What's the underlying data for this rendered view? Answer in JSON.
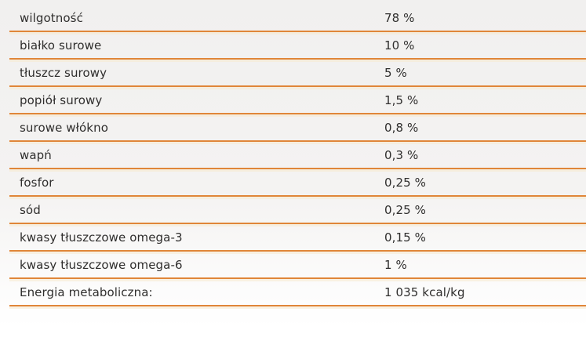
{
  "colors": {
    "separator": "#e08639",
    "text": "#2f2e2d",
    "background_top": "#f1f0ef",
    "background_bottom": "#ffffff"
  },
  "table": {
    "rows": [
      {
        "label": "wilgotność",
        "value": "78 %"
      },
      {
        "label": "białko surowe",
        "value": "10 %"
      },
      {
        "label": "tłuszcz surowy",
        "value": "5 %"
      },
      {
        "label": "popiół surowy",
        "value": "1,5 %"
      },
      {
        "label": "surowe włókno",
        "value": "0,8 %"
      },
      {
        "label": "wapń",
        "value": "0,3 %"
      },
      {
        "label": "fosfor",
        "value": "0,25 %"
      },
      {
        "label": "sód",
        "value": "0,25 %"
      },
      {
        "label": "kwasy tłuszczowe omega-3",
        "value": "0,15 %"
      },
      {
        "label": "kwasy tłuszczowe omega-6",
        "value": "1 %"
      },
      {
        "label": "Energia metaboliczna:",
        "value": "1 035 kcal/kg"
      }
    ]
  }
}
